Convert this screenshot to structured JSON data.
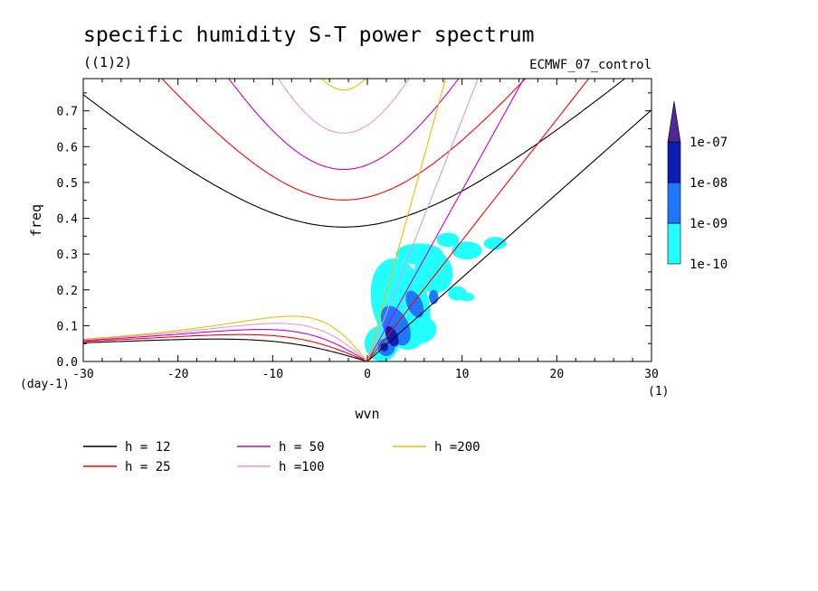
{
  "chart_data": {
    "type": "line",
    "title": "specific humidity S-T power spectrum",
    "subtitle": "((1)2)",
    "run_label": "ECMWF_07_control",
    "xlabel": "wvn",
    "ylabel": "freq",
    "x_unit": "(1)",
    "y_unit": "(day-1)",
    "xlim": [
      -30,
      30
    ],
    "ylim": [
      0,
      0.79
    ],
    "x_ticks": [
      -30,
      -20,
      -10,
      0,
      10,
      20,
      30
    ],
    "y_ticks": [
      0.0,
      0.1,
      0.2,
      0.3,
      0.4,
      0.5,
      0.6,
      0.7
    ],
    "x_tick_labels": [
      "-30",
      "-20",
      "-10",
      "0",
      "10",
      "20",
      "30"
    ],
    "y_tick_labels": [
      "0.0",
      "0.1",
      "0.2",
      "0.3",
      "0.4",
      "0.5",
      "0.6",
      "0.7"
    ],
    "series": [
      {
        "name": "h = 12",
        "h": 12,
        "color": "#000000"
      },
      {
        "name": "h = 25",
        "h": 25,
        "color": "#ff0000"
      },
      {
        "name": "h = 50",
        "h": 50,
        "color": "#cc00cc"
      },
      {
        "name": "h =100",
        "h": 100,
        "color": "#dd99dd"
      },
      {
        "name": "h =200",
        "h": 200,
        "color": "#e6c200"
      }
    ],
    "colorbar": {
      "labels": [
        "1e-10",
        "1e-09",
        "1e-08",
        "1e-07"
      ],
      "colors": [
        "#22ffff",
        "#1e78ff",
        "#0a1eb4",
        "#502896"
      ]
    },
    "shading_colors": {
      "low": "#22ffff",
      "mid": "#1e78ff",
      "high": "#0a1eb4"
    }
  }
}
